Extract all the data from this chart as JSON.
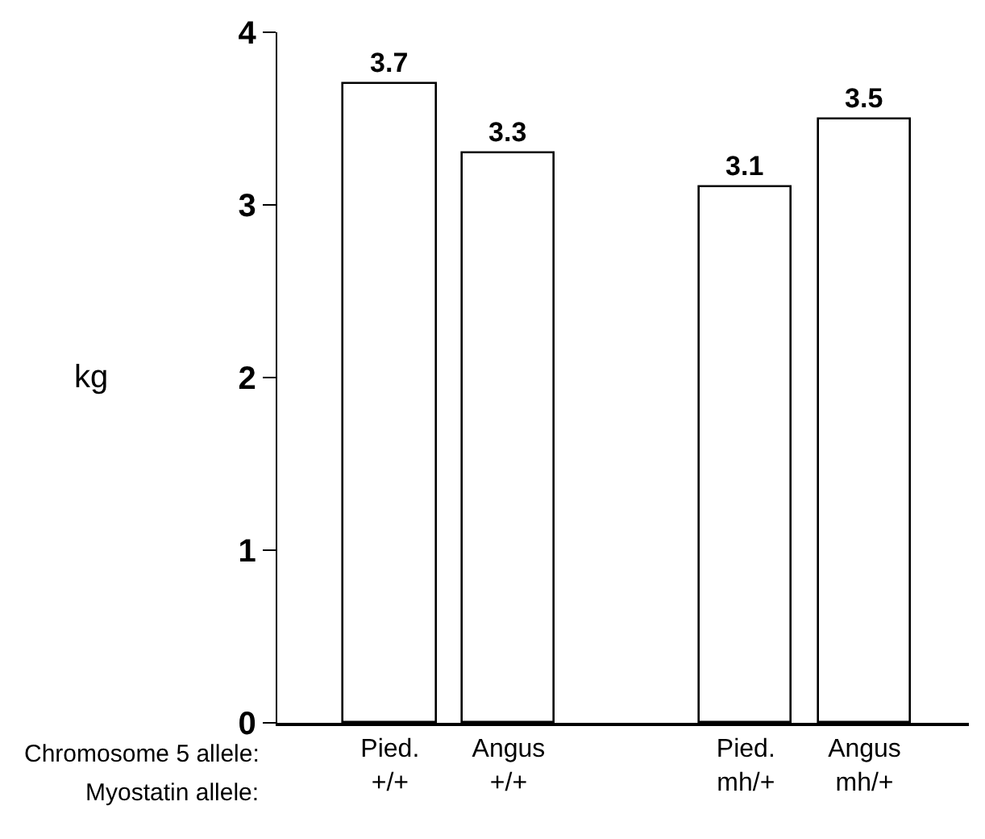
{
  "chart_data": {
    "type": "bar",
    "ylabel": "kg",
    "categories": [
      "Pied.\n+/+",
      "Angus\n+/+",
      null,
      "Pied.\nmh/+",
      "Angus\nmh/+"
    ],
    "values": [
      3.7,
      3.3,
      null,
      3.1,
      3.5
    ],
    "color": "#ffffff",
    "ylim": [
      0,
      4
    ],
    "yticks": [
      0,
      1,
      2,
      3,
      4
    ],
    "data_labels": true,
    "legend": false,
    "annotations": [
      "Chromosome 5 allele:",
      "Myostatin allele:"
    ]
  }
}
